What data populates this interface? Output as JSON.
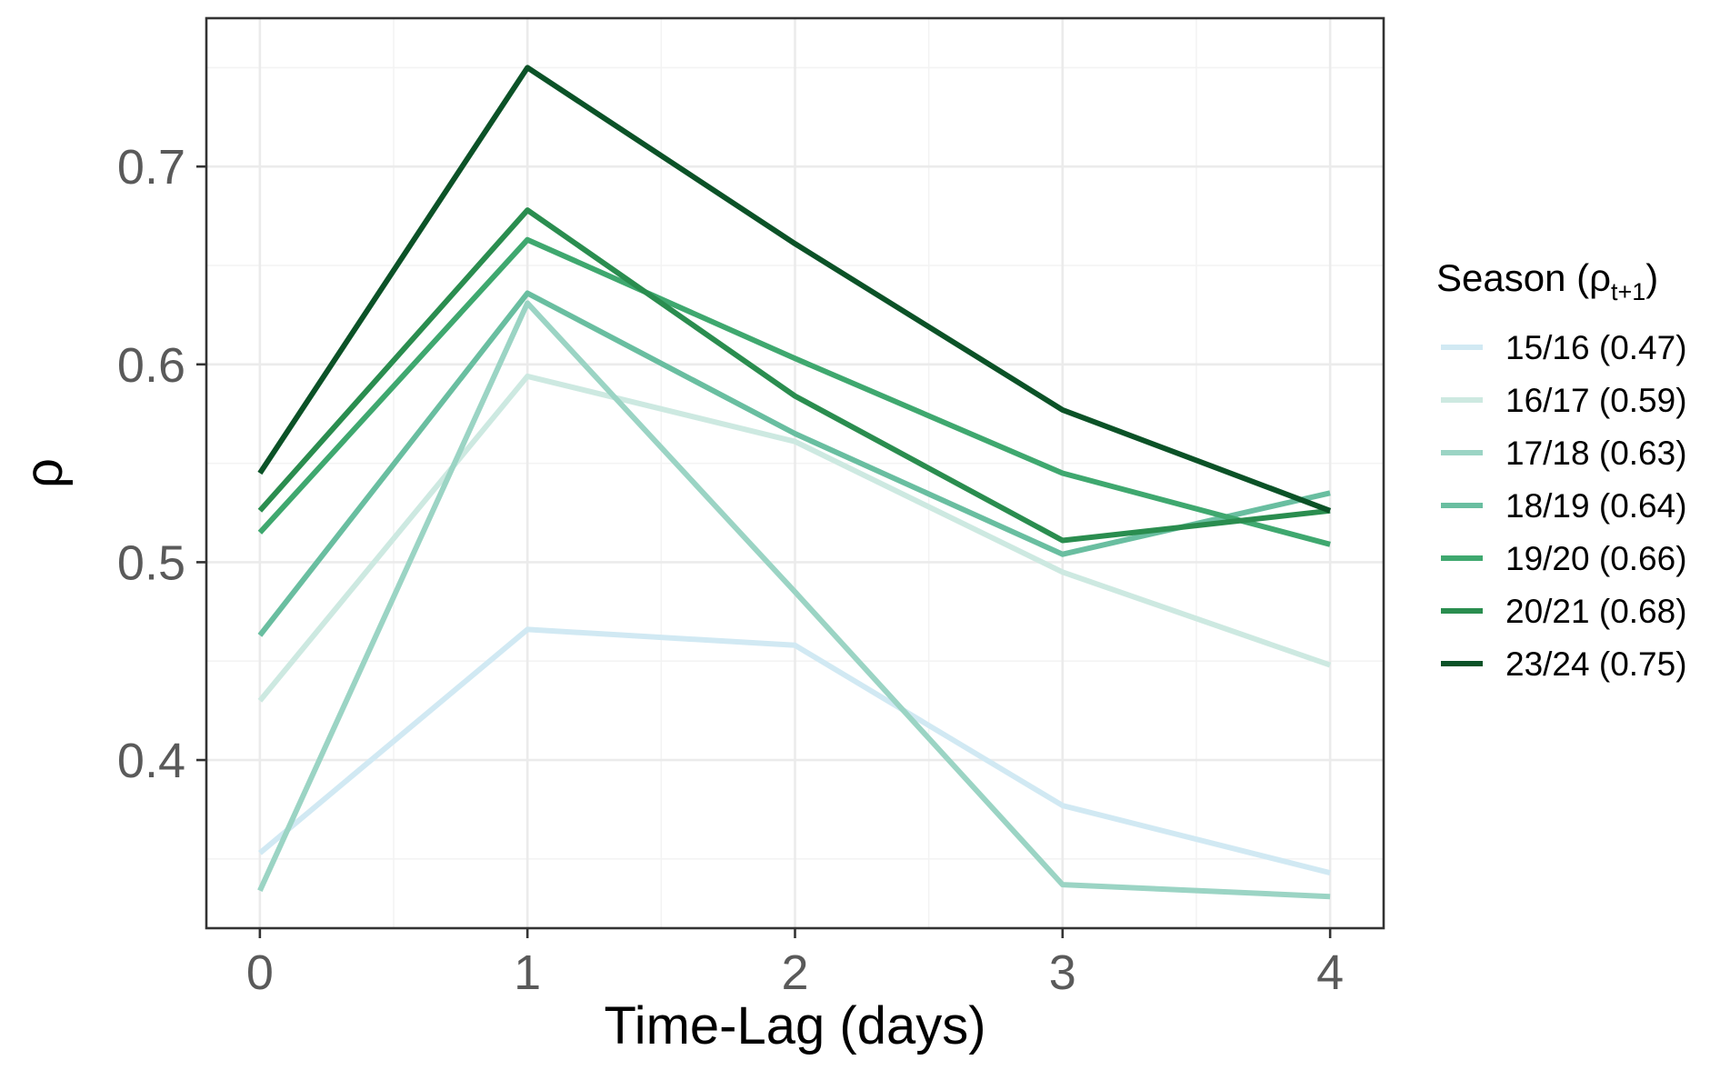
{
  "chart_data": {
    "type": "line",
    "title": "",
    "xlabel": "Time-Lag (days)",
    "ylabel": "ρ",
    "x": [
      0,
      1,
      2,
      3,
      4
    ],
    "xlim": [
      -0.2,
      4.2
    ],
    "ylim": [
      0.315,
      0.775
    ],
    "x_ticks": [
      "0",
      "1",
      "2",
      "3",
      "4"
    ],
    "y_ticks": [
      0.4,
      0.5,
      0.6,
      0.7
    ],
    "y_tick_labels": [
      "0.4",
      "0.5",
      "0.6",
      "0.7"
    ],
    "grid": true,
    "legend": {
      "placement": "right",
      "title_main": "Season (ρ",
      "title_sub": "t+1",
      "title_close": ")"
    },
    "series": [
      {
        "name": "15/16 (0.47)",
        "color": "#d1e9f3",
        "values": [
          0.353,
          0.466,
          0.458,
          0.377,
          0.343
        ]
      },
      {
        "name": "16/17 (0.59)",
        "color": "#cde9e1",
        "values": [
          0.43,
          0.594,
          0.561,
          0.495,
          0.448
        ]
      },
      {
        "name": "17/18 (0.63)",
        "color": "#9bd4c4",
        "values": [
          0.334,
          0.631,
          0.485,
          0.337,
          0.331
        ]
      },
      {
        "name": "18/19 (0.64)",
        "color": "#69bea0",
        "values": [
          0.463,
          0.636,
          0.565,
          0.504,
          0.535
        ]
      },
      {
        "name": "19/20 (0.66)",
        "color": "#3fa86f",
        "values": [
          0.515,
          0.663,
          0.603,
          0.545,
          0.509
        ]
      },
      {
        "name": "20/21 (0.68)",
        "color": "#2a8d4f",
        "values": [
          0.526,
          0.678,
          0.584,
          0.511,
          0.526
        ]
      },
      {
        "name": "23/24 (0.75)",
        "color": "#0b5227",
        "values": [
          0.545,
          0.75,
          0.661,
          0.577,
          0.526
        ]
      }
    ]
  }
}
